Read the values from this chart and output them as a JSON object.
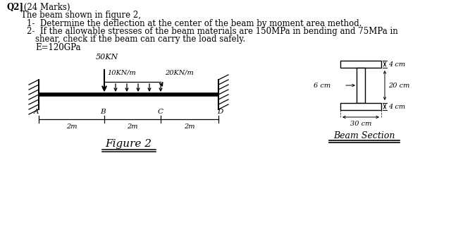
{
  "bg_color": "#ffffff",
  "title_bold": "Q2]",
  "title_normal": " (24 Marks)",
  "line1": "The beam shown in figure 2,",
  "line2": "1-  Determine the deflection at the center of the beam by moment area method.",
  "line3": "2-  If the allowable stresses of the beam materials are 150MPa in bending and 75MPa in",
  "line4": "     shear, check if the beam can carry the load safely.",
  "line5": "     E=120GPa",
  "load_50kn": "50KN",
  "load_dist1": "10KN/m",
  "load_dist2": "20KN/m",
  "fig_label": "Figure 2",
  "section_label": "Beam Section",
  "span_labels": [
    "2m",
    "2m",
    "2m"
  ],
  "point_labels": [
    "A",
    "B",
    "C",
    "D"
  ],
  "section_right_labels": [
    "4 cm",
    "20 cm",
    "4 cm"
  ],
  "section_left_label": "6 cm",
  "section_bot_label": "30 cm"
}
